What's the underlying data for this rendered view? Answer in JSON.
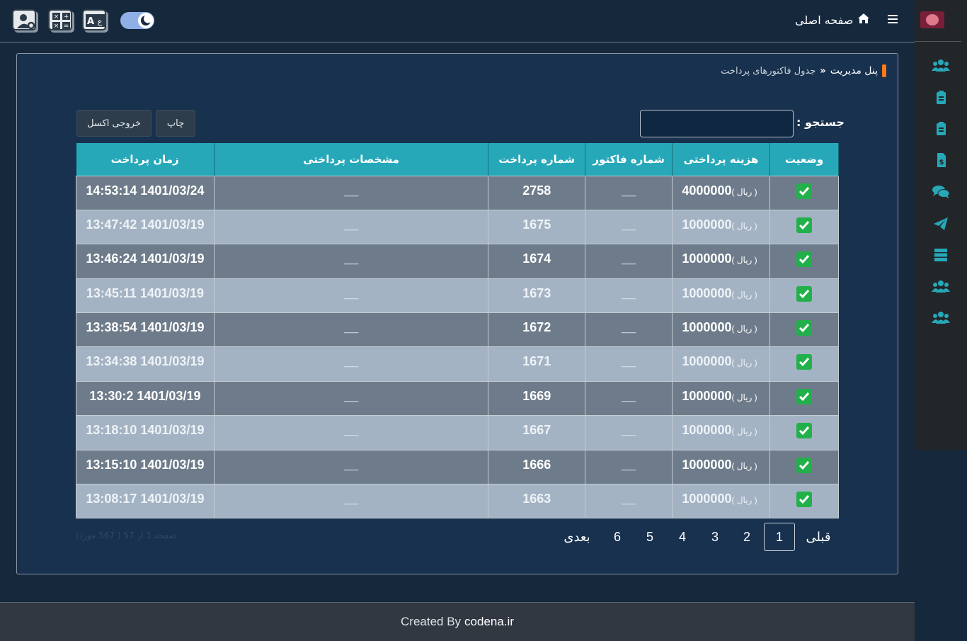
{
  "topbar": {
    "home_label": "صفحه اصلی",
    "icons": [
      "user-settings-icon",
      "calculator-icon",
      "translate-icon",
      "hamburger-icon",
      "home-icon"
    ],
    "theme_toggle": "dark-mode"
  },
  "sidebar": {
    "items": [
      "users-icon",
      "clipboard-icon",
      "clipboard-icon",
      "invoice-icon",
      "comments-icon",
      "paper-plane-icon",
      "server-icon",
      "users-icon",
      "users-icon"
    ]
  },
  "breadcrumb": {
    "root": "پنل مدیریت",
    "current": "جدول فاکتورهای پرداخت"
  },
  "search": {
    "label": "جستجو :",
    "value": ""
  },
  "buttons": {
    "print": "چاپ",
    "excel": "خروجی اکسل"
  },
  "table": {
    "headers": {
      "status": "وضعیت",
      "cost": "هزینه پرداختی",
      "invoice": "شماره فاکتور",
      "payment_no": "شماره پرداخت",
      "details": "مشخصات پرداختی",
      "time": "زمان پرداخت"
    },
    "currency": "( ریال )",
    "rows": [
      {
        "cost": "4000000",
        "invoice": "__",
        "payment_no": "2758",
        "details": "__",
        "time": "14:53:14 1401/03/24"
      },
      {
        "cost": "1000000",
        "invoice": "__",
        "payment_no": "1675",
        "details": "__",
        "time": "13:47:42 1401/03/19"
      },
      {
        "cost": "1000000",
        "invoice": "__",
        "payment_no": "1674",
        "details": "__",
        "time": "13:46:24 1401/03/19"
      },
      {
        "cost": "1000000",
        "invoice": "__",
        "payment_no": "1673",
        "details": "__",
        "time": "13:45:11 1401/03/19"
      },
      {
        "cost": "1000000",
        "invoice": "__",
        "payment_no": "1672",
        "details": "__",
        "time": "13:38:54 1401/03/19"
      },
      {
        "cost": "1000000",
        "invoice": "__",
        "payment_no": "1671",
        "details": "__",
        "time": "13:34:38 1401/03/19"
      },
      {
        "cost": "1000000",
        "invoice": "__",
        "payment_no": "1669",
        "details": "__",
        "time": "13:30:2 1401/03/19"
      },
      {
        "cost": "1000000",
        "invoice": "__",
        "payment_no": "1667",
        "details": "__",
        "time": "13:18:10 1401/03/19"
      },
      {
        "cost": "1000000",
        "invoice": "__",
        "payment_no": "1666",
        "details": "__",
        "time": "13:15:10 1401/03/19"
      },
      {
        "cost": "1000000",
        "invoice": "__",
        "payment_no": "1663",
        "details": "__",
        "time": "13:08:17 1401/03/19"
      }
    ]
  },
  "pagination": {
    "prev": "قبلی",
    "pages": [
      "1",
      "2",
      "3",
      "4",
      "5",
      "6"
    ],
    "next": "بعدی",
    "info": "صفحه 1 از 57 ( 567 مورد)"
  },
  "footer": {
    "prefix": "Created By",
    "brand": "codena.ir"
  },
  "colors": {
    "accent": "#26a8b9",
    "check": "#22b04b",
    "crumb_bar": "#ff7a1a"
  }
}
